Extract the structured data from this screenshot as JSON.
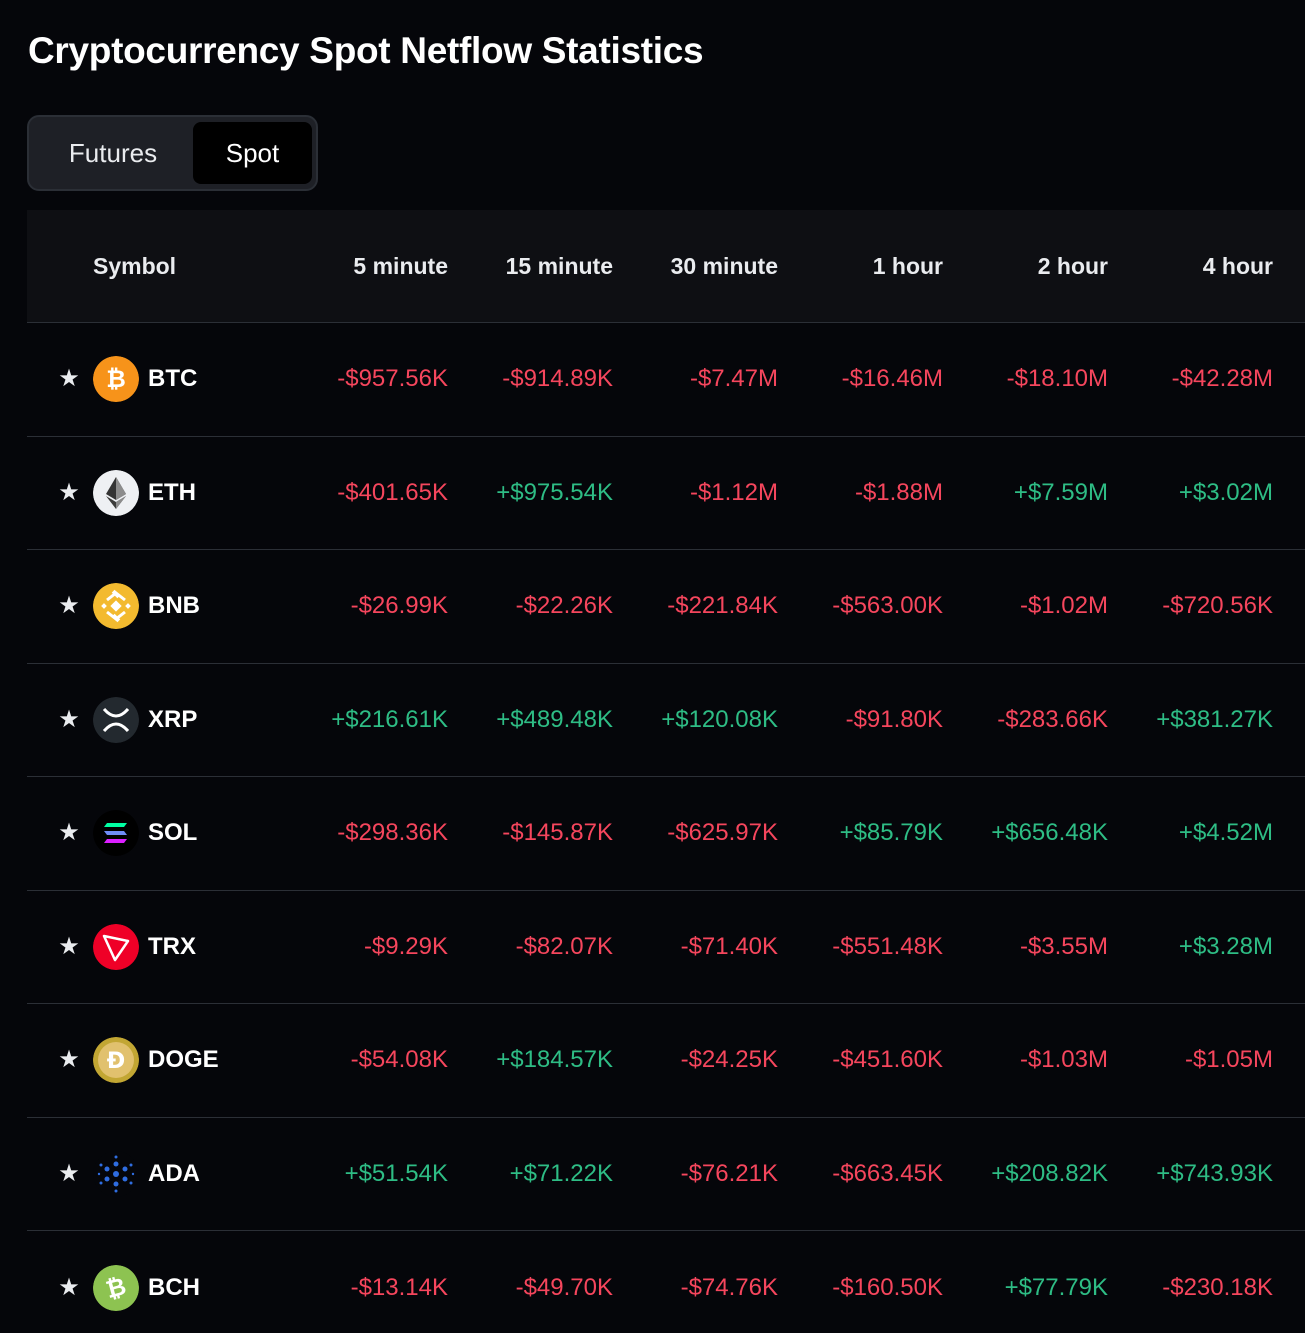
{
  "title": "Cryptocurrency Spot Netflow Statistics",
  "tabs": {
    "futures": "Futures",
    "spot": "Spot",
    "active": "Spot"
  },
  "colors": {
    "negative": "#f6465d",
    "positive": "#2ebd85",
    "background": "#05060a"
  },
  "columns": [
    "Symbol",
    "5 minute",
    "15 minute",
    "30 minute",
    "1 hour",
    "2 hour",
    "4 hour"
  ],
  "rows": [
    {
      "symbol": "BTC",
      "icon": "bitcoin-icon",
      "values": [
        "-$957.56K",
        "-$914.89K",
        "-$7.47M",
        "-$16.46M",
        "-$18.10M",
        "-$42.28M"
      ]
    },
    {
      "symbol": "ETH",
      "icon": "ethereum-icon",
      "values": [
        "-$401.65K",
        "+$975.54K",
        "-$1.12M",
        "-$1.88M",
        "+$7.59M",
        "+$3.02M"
      ]
    },
    {
      "symbol": "BNB",
      "icon": "bnb-icon",
      "values": [
        "-$26.99K",
        "-$22.26K",
        "-$221.84K",
        "-$563.00K",
        "-$1.02M",
        "-$720.56K"
      ]
    },
    {
      "symbol": "XRP",
      "icon": "xrp-icon",
      "values": [
        "+$216.61K",
        "+$489.48K",
        "+$120.08K",
        "-$91.80K",
        "-$283.66K",
        "+$381.27K"
      ]
    },
    {
      "symbol": "SOL",
      "icon": "solana-icon",
      "values": [
        "-$298.36K",
        "-$145.87K",
        "-$625.97K",
        "+$85.79K",
        "+$656.48K",
        "+$4.52M"
      ]
    },
    {
      "symbol": "TRX",
      "icon": "tron-icon",
      "values": [
        "-$9.29K",
        "-$82.07K",
        "-$71.40K",
        "-$551.48K",
        "-$3.55M",
        "+$3.28M"
      ]
    },
    {
      "symbol": "DOGE",
      "icon": "dogecoin-icon",
      "values": [
        "-$54.08K",
        "+$184.57K",
        "-$24.25K",
        "-$451.60K",
        "-$1.03M",
        "-$1.05M"
      ]
    },
    {
      "symbol": "ADA",
      "icon": "cardano-icon",
      "values": [
        "+$51.54K",
        "+$71.22K",
        "-$76.21K",
        "-$663.45K",
        "+$208.82K",
        "+$743.93K"
      ]
    },
    {
      "symbol": "BCH",
      "icon": "bitcoin-cash-icon",
      "values": [
        "-$13.14K",
        "-$49.70K",
        "-$74.76K",
        "-$160.50K",
        "+$77.79K",
        "-$230.18K"
      ]
    }
  ]
}
